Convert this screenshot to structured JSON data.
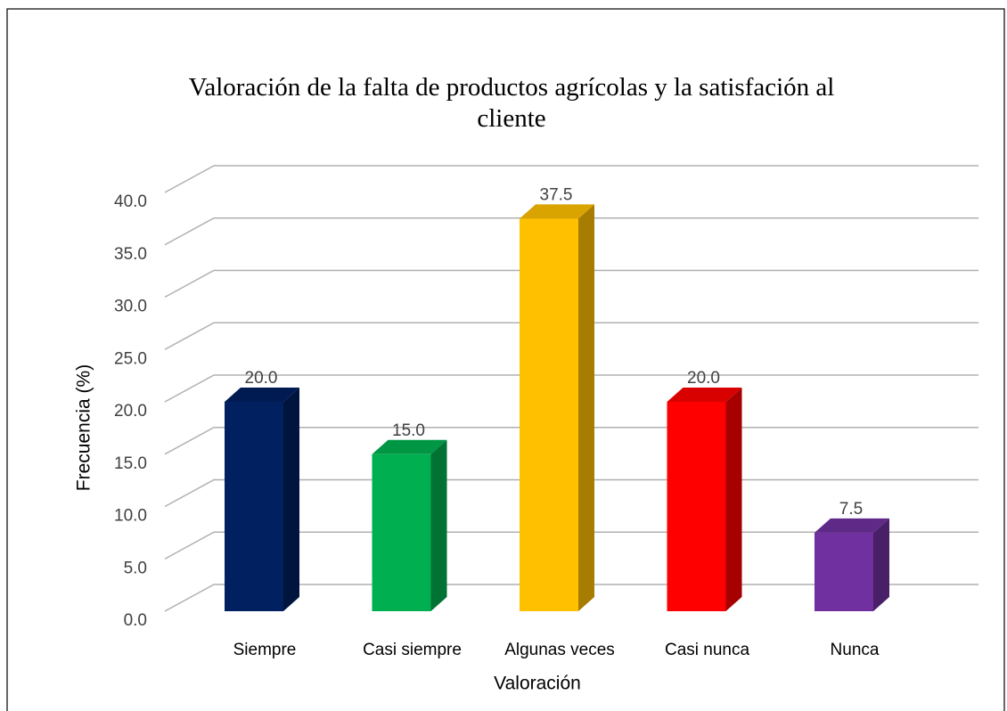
{
  "chart_data": {
    "type": "bar3d",
    "title": "Valoración de la falta de productos agrícolas y la satisfación al cliente",
    "x_label": "Valoración",
    "y_label": "Frecuencia (%)",
    "categories": [
      "Siempre",
      "Casi siempre",
      "Algunas veces",
      "Casi nunca",
      "Nunca"
    ],
    "values": [
      20,
      15,
      37.5,
      20,
      7.5
    ],
    "value_labels": [
      "20.0",
      "15.0",
      "37.5",
      "20.0",
      "7.5"
    ],
    "colors": [
      "#002060",
      "#00b050",
      "#ffc000",
      "#ff0000",
      "#7030a0"
    ],
    "ylim": [
      0,
      40
    ],
    "yticks": [
      {
        "value": 0,
        "label": "0.0"
      },
      {
        "value": 5,
        "label": "5.0"
      },
      {
        "value": 10,
        "label": "10.0"
      },
      {
        "value": 15,
        "label": "15.0"
      },
      {
        "value": 20,
        "label": "20.0"
      },
      {
        "value": 25,
        "label": "25.0"
      },
      {
        "value": 30,
        "label": "30.0"
      },
      {
        "value": 35,
        "label": "35.0"
      },
      {
        "value": 40,
        "label": "40.0"
      }
    ],
    "grid": true
  }
}
